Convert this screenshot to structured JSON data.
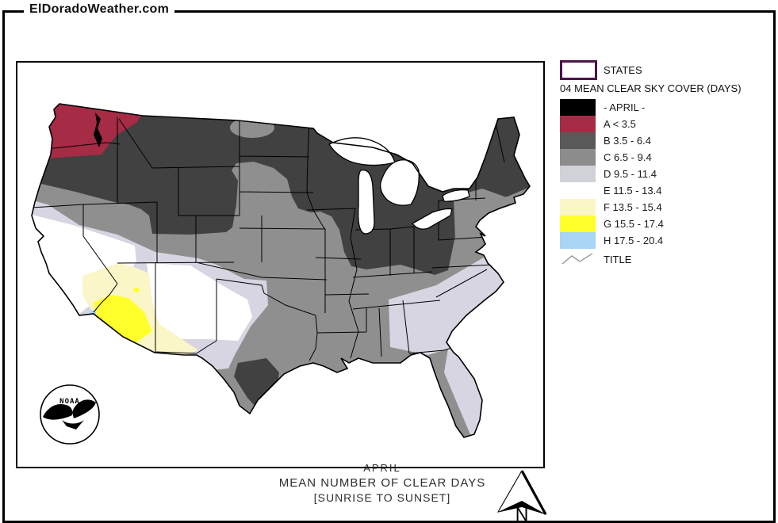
{
  "header": {
    "site_label": "ElDoradoWeather.com"
  },
  "legend": {
    "states_label": "STATES",
    "heading": "04 MEAN CLEAR SKY COVER (DAYS)",
    "classes": [
      {
        "label": "- APRIL -",
        "color": "#000000"
      },
      {
        "label": "A < 3.5",
        "color": "#A62B45"
      },
      {
        "label": "B 3.5 - 6.4",
        "color": "#595959"
      },
      {
        "label": "C 6.5 - 9.4",
        "color": "#8C8C8C"
      },
      {
        "label": "D 9.5 - 11.4",
        "color": "#D1D1D8"
      },
      {
        "label": "E 11.5 - 13.4",
        "color": "#FFFFFF"
      },
      {
        "label": "F 13.5 - 15.4",
        "color": "#FAF6C8"
      },
      {
        "label": "G 15.5 - 17.4",
        "color": "#FFFF2B"
      },
      {
        "label": "H 17.5 - 20.4",
        "color": "#A9D4F4"
      }
    ],
    "title_row_label": "TITLE",
    "states_box_border_color": "#4A1548"
  },
  "map": {
    "caption_line1": "APRIL",
    "caption_line2": "MEAN NUMBER OF CLEAR DAYS",
    "caption_line3": "[SUNRISE TO SUNSET]",
    "noaa_logo_text": "NOAA",
    "north_label": "N",
    "colors": {
      "A": "#A62B45",
      "B": "#414141",
      "C": "#8F8F8F",
      "D": "#D8D5E2",
      "E": "#FFFFFF",
      "F": "#FAF6C8",
      "G": "#FFFF2B",
      "H": "#A9D4F4",
      "water": "#FFFFFF",
      "boundary": "#000000"
    }
  }
}
